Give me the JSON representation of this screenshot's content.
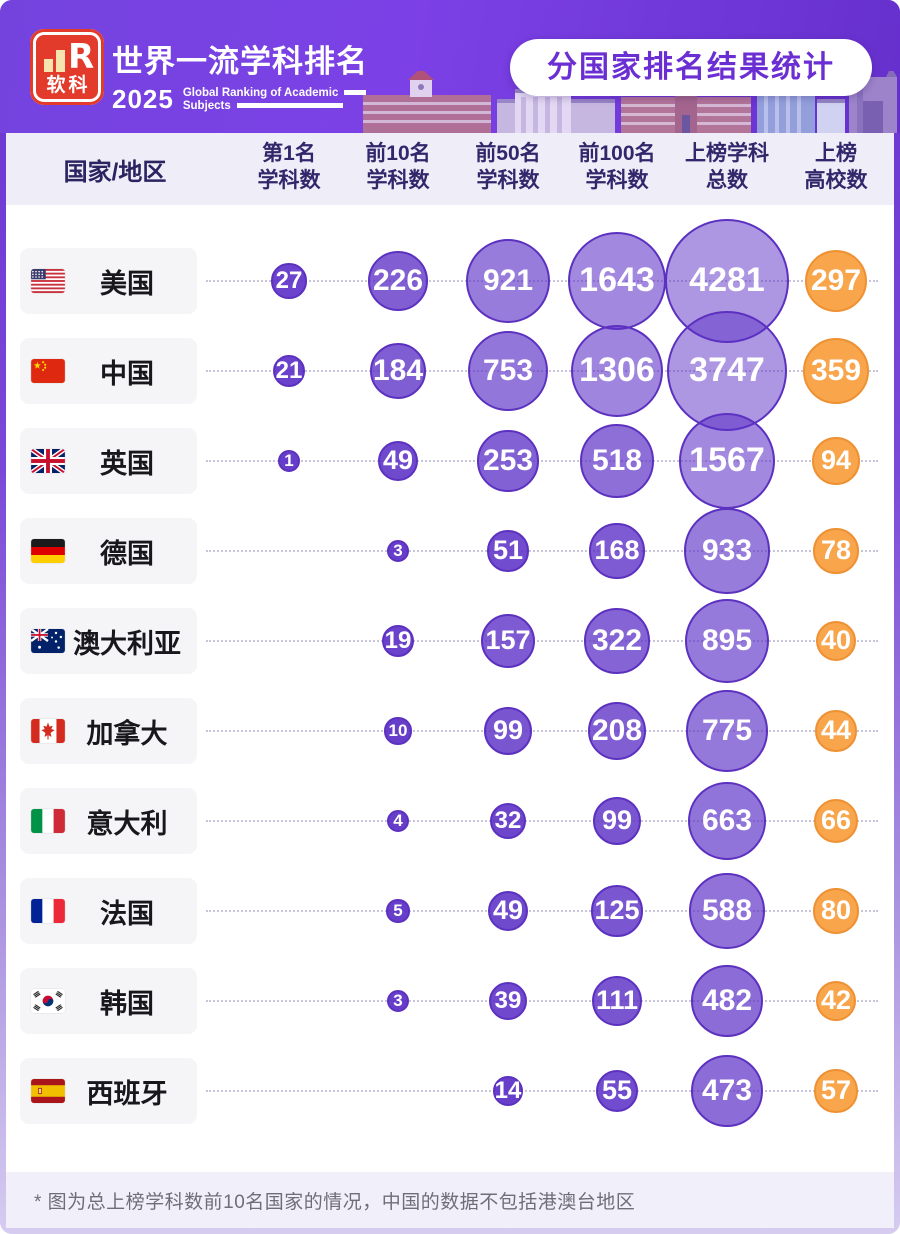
{
  "header": {
    "logo_text": "软科",
    "logo_r": "R",
    "title": "世界一流学科排名",
    "year": "2025",
    "subtitle_line1": "Global Ranking of Academic",
    "subtitle_line2": "Subjects",
    "badge": "分国家排名结果统计"
  },
  "table": {
    "country_column_header": "国家/地区",
    "columns": [
      {
        "line1": "第1名",
        "line2": "学科数"
      },
      {
        "line1": "前10名",
        "line2": "学科数"
      },
      {
        "line1": "前50名",
        "line2": "学科数"
      },
      {
        "line1": "前100名",
        "line2": "学科数"
      },
      {
        "line1": "上榜学科",
        "line2": "总数"
      },
      {
        "line1": "上榜",
        "line2": "高校数"
      }
    ]
  },
  "footnote": "* 图为总上榜学科数前10名国家的情况，中国的数据不包括港澳台地区",
  "colors": {
    "header_purple": "#6e38d6",
    "bubble_purple_border": "#5c31c0",
    "bubble_purple_base": "#5b2fc6",
    "bubble_orange_fill": "#f8a54c",
    "bubble_orange_border": "#ee9133",
    "band_lavender": "#efedf8",
    "badge_text": "#6b2ed3"
  },
  "chart_data": {
    "type": "bubble",
    "title": "分国家排名结果统计",
    "subtitle": "世界一流学科排名 2025 Global Ranking of Academic Subjects",
    "columns": [
      "第1名学科数",
      "前10名学科数",
      "前50名学科数",
      "前100名学科数",
      "上榜学科总数",
      "上榜高校数"
    ],
    "size_encoding": "bubble area increases with value; last column styled orange, others purple",
    "rows": [
      {
        "country": "美国",
        "flag": "us",
        "values": [
          27,
          226,
          921,
          1643,
          4281,
          297
        ]
      },
      {
        "country": "中国",
        "flag": "cn",
        "values": [
          21,
          184,
          753,
          1306,
          3747,
          359
        ]
      },
      {
        "country": "英国",
        "flag": "gb",
        "values": [
          1,
          49,
          253,
          518,
          1567,
          94
        ]
      },
      {
        "country": "德国",
        "flag": "de",
        "values": [
          null,
          3,
          51,
          168,
          933,
          78
        ]
      },
      {
        "country": "澳大利亚",
        "flag": "au",
        "values": [
          null,
          19,
          157,
          322,
          895,
          40
        ]
      },
      {
        "country": "加拿大",
        "flag": "ca",
        "values": [
          null,
          10,
          99,
          208,
          775,
          44
        ]
      },
      {
        "country": "意大利",
        "flag": "it",
        "values": [
          null,
          4,
          32,
          99,
          663,
          66
        ]
      },
      {
        "country": "法国",
        "flag": "fr",
        "values": [
          null,
          5,
          49,
          125,
          588,
          80
        ]
      },
      {
        "country": "韩国",
        "flag": "kr",
        "values": [
          null,
          3,
          39,
          111,
          482,
          42
        ]
      },
      {
        "country": "西班牙",
        "flag": "es",
        "values": [
          null,
          null,
          14,
          55,
          473,
          57
        ]
      }
    ]
  }
}
